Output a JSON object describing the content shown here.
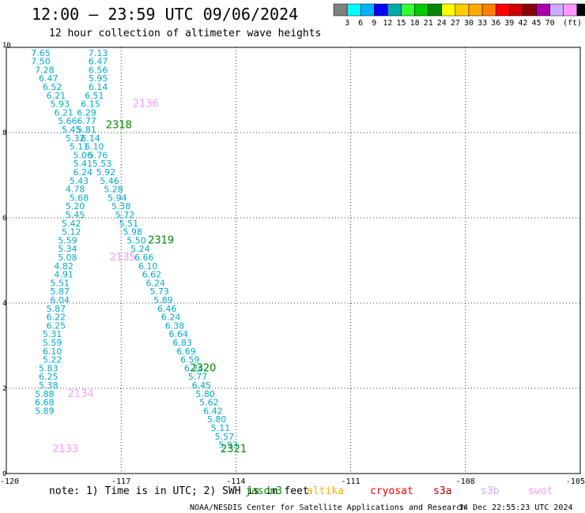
{
  "header": {
    "title": "12:00 – 23:59 UTC 09/06/2024",
    "subtitle": "12 hour collection of altimeter wave heights"
  },
  "colorbar": {
    "colors": [
      "#808080",
      "#00ffff",
      "#00b4ff",
      "#0000ff",
      "#00aaaa",
      "#33ff33",
      "#00cc00",
      "#008800",
      "#ffff00",
      "#ffcc00",
      "#ffaa00",
      "#ff7f00",
      "#ff0000",
      "#cc0000",
      "#880000",
      "#aa00aa",
      "#ccaaff",
      "#ff99ff",
      "#000000"
    ],
    "labels": [
      "3",
      "6",
      "9",
      "12",
      "15",
      "18",
      "21",
      "24",
      "27",
      "30",
      "33",
      "36",
      "39",
      "42",
      "45",
      "70"
    ],
    "unit": "(ft)"
  },
  "footer": {
    "note": "note:  1) Time is in UTC; 2) SWH is in feet",
    "satellites": [
      {
        "name": "jason3",
        "color": "#008800"
      },
      {
        "name": "altika",
        "color": "#ffaa00"
      },
      {
        "name": "cryosat",
        "color": "#ff0000"
      },
      {
        "name": "s3a",
        "color": "#aa0000"
      },
      {
        "name": "s3b",
        "color": "#ccaaff"
      },
      {
        "name": "swot",
        "color": "#ff99ff"
      }
    ],
    "credit": "NOAA/NESDIS Center for Satellite Applications and Research",
    "timestamp": "14 Dec 22:55:23 UTC 2024"
  },
  "chart_data": {
    "type": "scatter",
    "xlim": [
      -120,
      -105
    ],
    "ylim": [
      0,
      10
    ],
    "x_ticks": [
      "-120",
      "-117",
      "-114",
      "-111",
      "-108",
      "-105"
    ],
    "y_ticks": [
      "0",
      "2",
      "4",
      "6",
      "8",
      "10"
    ],
    "grid": true,
    "series": [
      {
        "color": "#00aacc",
        "points": [
          [
            -119.1,
            9.8,
            "7.65"
          ],
          [
            -119.1,
            9.6,
            "7.50"
          ],
          [
            -119.0,
            9.4,
            "7.28"
          ],
          [
            -118.9,
            9.2,
            "6.47"
          ],
          [
            -118.8,
            9.0,
            "6.52"
          ],
          [
            -118.7,
            8.8,
            "6.21"
          ],
          [
            -118.6,
            8.6,
            "5.93"
          ],
          [
            -118.5,
            8.4,
            "6.21"
          ],
          [
            -118.4,
            8.2,
            "5.66"
          ],
          [
            -118.3,
            8.0,
            "5.45"
          ],
          [
            -118.2,
            7.8,
            "5.32"
          ],
          [
            -118.1,
            7.6,
            "5.11"
          ],
          [
            -118.0,
            7.4,
            "5.06"
          ],
          [
            -118.0,
            7.2,
            "5.41"
          ],
          [
            -118.0,
            7.0,
            "6.24"
          ],
          [
            -118.1,
            6.8,
            "5.43"
          ],
          [
            -118.2,
            6.6,
            "4.78"
          ],
          [
            -118.1,
            6.4,
            "5.68"
          ],
          [
            -118.2,
            6.2,
            "5.20"
          ],
          [
            -118.2,
            6.0,
            "5.45"
          ],
          [
            -118.3,
            5.8,
            "5.42"
          ],
          [
            -118.3,
            5.6,
            "5.12"
          ],
          [
            -118.4,
            5.4,
            "5.59"
          ],
          [
            -118.4,
            5.2,
            "5.34"
          ],
          [
            -118.4,
            5.0,
            "5.08"
          ],
          [
            -118.5,
            4.8,
            "4.82"
          ],
          [
            -118.5,
            4.6,
            "4.91"
          ],
          [
            -118.6,
            4.4,
            "5.51"
          ],
          [
            -118.6,
            4.2,
            "5.87"
          ],
          [
            -118.6,
            4.0,
            "6.04"
          ],
          [
            -118.7,
            3.8,
            "5.87"
          ],
          [
            -118.7,
            3.6,
            "6.22"
          ],
          [
            -118.7,
            3.4,
            "6.25"
          ],
          [
            -118.8,
            3.2,
            "5.31"
          ],
          [
            -118.8,
            3.0,
            "5.59"
          ],
          [
            -118.8,
            2.8,
            "6.10"
          ],
          [
            -118.8,
            2.6,
            "5.22"
          ],
          [
            -118.9,
            2.4,
            "5.83"
          ],
          [
            -118.9,
            2.2,
            "6.25"
          ],
          [
            -118.9,
            2.0,
            "5.38"
          ],
          [
            -119.0,
            1.8,
            "5.88"
          ],
          [
            -119.0,
            1.6,
            "6.68"
          ],
          [
            -119.0,
            1.4,
            "5.89"
          ]
        ]
      },
      {
        "color": "#00aacc",
        "points": [
          [
            -117.6,
            9.8,
            "7.13"
          ],
          [
            -117.6,
            9.6,
            "6.47"
          ],
          [
            -117.6,
            9.4,
            "6.56"
          ],
          [
            -117.6,
            9.2,
            "5.95"
          ],
          [
            -117.6,
            9.0,
            "6.14"
          ],
          [
            -117.7,
            8.8,
            "6.51"
          ],
          [
            -117.8,
            8.6,
            "6.15"
          ],
          [
            -117.9,
            8.4,
            "6.29"
          ],
          [
            -117.9,
            8.2,
            "6.77"
          ],
          [
            -117.9,
            8.0,
            "5.81"
          ],
          [
            -117.8,
            7.8,
            "6.14"
          ],
          [
            -117.7,
            7.6,
            "6.10"
          ],
          [
            -117.6,
            7.4,
            "5.76"
          ],
          [
            -117.5,
            7.2,
            "5.53"
          ],
          [
            -117.4,
            7.0,
            "5.92"
          ],
          [
            -117.3,
            6.8,
            "5.46"
          ],
          [
            -117.2,
            6.6,
            "5.28"
          ],
          [
            -117.1,
            6.4,
            "5.94"
          ],
          [
            -117.0,
            6.2,
            "5.38"
          ],
          [
            -116.9,
            6.0,
            "5.72"
          ],
          [
            -116.8,
            5.8,
            "5.51"
          ],
          [
            -116.7,
            5.6,
            "5.98"
          ],
          [
            -116.6,
            5.4,
            "5.50"
          ],
          [
            -116.5,
            5.2,
            "5.24"
          ],
          [
            -116.4,
            5.0,
            "6.66"
          ],
          [
            -116.3,
            4.8,
            "6.10"
          ],
          [
            -116.2,
            4.6,
            "6.62"
          ],
          [
            -116.1,
            4.4,
            "6.24"
          ],
          [
            -116.0,
            4.2,
            "5.73"
          ],
          [
            -115.9,
            4.0,
            "5.89"
          ],
          [
            -115.8,
            3.8,
            "6.46"
          ],
          [
            -115.7,
            3.6,
            "6.24"
          ],
          [
            -115.6,
            3.4,
            "6.38"
          ],
          [
            -115.5,
            3.2,
            "6.64"
          ],
          [
            -115.4,
            3.0,
            "6.83"
          ],
          [
            -115.3,
            2.8,
            "6.69"
          ],
          [
            -115.2,
            2.6,
            "6.59"
          ],
          [
            -115.1,
            2.4,
            "6.24"
          ],
          [
            -115.0,
            2.2,
            "5.77"
          ],
          [
            -114.9,
            2.0,
            "6.45"
          ],
          [
            -114.8,
            1.8,
            "5.80"
          ],
          [
            -114.7,
            1.6,
            "5.62"
          ],
          [
            -114.6,
            1.4,
            "6.42"
          ],
          [
            -114.5,
            1.2,
            "5.80"
          ],
          [
            -114.4,
            1.0,
            "5.11"
          ],
          [
            -114.3,
            0.8,
            "5.57"
          ],
          [
            -114.2,
            0.6,
            "5.93"
          ]
        ]
      }
    ],
    "annotations": [
      {
        "x": -116.7,
        "y": 8.6,
        "text": "2136",
        "color": "#ff99ff"
      },
      {
        "x": -117.4,
        "y": 8.1,
        "text": "2318",
        "color": "#008800"
      },
      {
        "x": -116.3,
        "y": 5.4,
        "text": "2319",
        "color": "#008800"
      },
      {
        "x": -117.3,
        "y": 5.0,
        "text": "2135",
        "color": "#ff99ff"
      },
      {
        "x": -115.2,
        "y": 2.4,
        "text": "2320",
        "color": "#008800"
      },
      {
        "x": -118.4,
        "y": 1.8,
        "text": "2134",
        "color": "#ff99ff"
      },
      {
        "x": -114.4,
        "y": 0.5,
        "text": "2321",
        "color": "#008800"
      },
      {
        "x": -118.8,
        "y": 0.5,
        "text": "2133",
        "color": "#ff99ff"
      }
    ]
  }
}
